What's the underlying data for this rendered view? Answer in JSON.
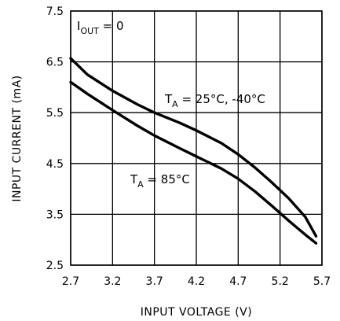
{
  "chart_data": {
    "type": "line",
    "xlabel": "INPUT VOLTAGE (V)",
    "ylabel": "INPUT CURRENT (mA)",
    "xlim": [
      2.7,
      5.7
    ],
    "ylim": [
      2.5,
      7.5
    ],
    "grid": true,
    "x_ticks": [
      "2.7",
      "3.2",
      "3.7",
      "4.2",
      "4.7",
      "5.2",
      "5.7"
    ],
    "y_ticks": [
      "2.5",
      "3.5",
      "4.5",
      "5.5",
      "6.5",
      "7.5"
    ],
    "x_tick_values": [
      2.7,
      3.2,
      3.7,
      4.2,
      4.7,
      5.2,
      5.7
    ],
    "y_tick_values": [
      2.5,
      3.5,
      4.5,
      5.5,
      6.5,
      7.5
    ],
    "annotations": {
      "iout": {
        "main": "I",
        "sub": "OUT",
        "rest": " = 0"
      },
      "upper_series": {
        "main": "T",
        "sub": "A",
        "rest": " = 25°C, -40°C"
      },
      "lower_series": {
        "main": "T",
        "sub": "A",
        "rest": " = 85°C"
      }
    },
    "series": [
      {
        "x": [
          2.7,
          2.9,
          3.2,
          3.5,
          3.7,
          4.0,
          4.2,
          4.5,
          4.7,
          4.9,
          5.1,
          5.3,
          5.5,
          5.63
        ],
        "y": [
          6.57,
          6.25,
          5.93,
          5.66,
          5.5,
          5.3,
          5.15,
          4.9,
          4.68,
          4.42,
          4.13,
          3.82,
          3.45,
          3.07
        ]
      },
      {
        "x": [
          2.7,
          2.9,
          3.2,
          3.5,
          3.7,
          4.0,
          4.2,
          4.5,
          4.7,
          4.9,
          5.1,
          5.3,
          5.5,
          5.63
        ],
        "y": [
          6.1,
          5.87,
          5.55,
          5.24,
          5.05,
          4.8,
          4.64,
          4.4,
          4.2,
          3.95,
          3.67,
          3.38,
          3.1,
          2.93
        ]
      }
    ]
  }
}
